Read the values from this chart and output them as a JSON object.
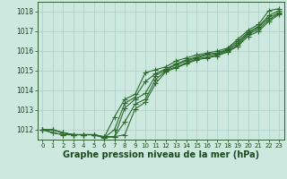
{
  "title": "Graphe pression niveau de la mer (hPa)",
  "hours": [
    0,
    1,
    2,
    3,
    4,
    5,
    6,
    7,
    8,
    9,
    10,
    11,
    12,
    13,
    14,
    15,
    16,
    17,
    18,
    19,
    20,
    21,
    22,
    23
  ],
  "ylim": [
    1011.5,
    1018.5
  ],
  "yticks": [
    1012,
    1013,
    1014,
    1015,
    1016,
    1017,
    1018
  ],
  "lines": [
    [
      1012.0,
      1012.0,
      1011.85,
      1011.75,
      1011.75,
      1011.75,
      1011.6,
      1012.65,
      1013.55,
      1013.8,
      1014.9,
      1015.05,
      1015.2,
      1015.5,
      1015.65,
      1015.8,
      1015.9,
      1016.0,
      1016.15,
      1016.6,
      1017.05,
      1017.35,
      1018.05,
      1018.15
    ],
    [
      1012.0,
      1012.0,
      1011.85,
      1011.75,
      1011.75,
      1011.75,
      1011.6,
      1012.0,
      1013.35,
      1013.65,
      1014.45,
      1014.85,
      1015.1,
      1015.35,
      1015.55,
      1015.7,
      1015.85,
      1015.9,
      1016.1,
      1016.5,
      1016.95,
      1017.25,
      1017.8,
      1018.05
    ],
    [
      1012.0,
      1012.0,
      1011.85,
      1011.75,
      1011.75,
      1011.75,
      1011.6,
      1011.65,
      1013.1,
      1013.55,
      1013.85,
      1014.75,
      1015.05,
      1015.3,
      1015.5,
      1015.65,
      1015.8,
      1015.85,
      1016.05,
      1016.4,
      1016.9,
      1017.2,
      1017.7,
      1017.95
    ],
    [
      1012.0,
      1011.85,
      1011.75,
      1011.75,
      1011.75,
      1011.75,
      1011.65,
      1011.65,
      1012.4,
      1013.3,
      1013.55,
      1014.55,
      1015.0,
      1015.2,
      1015.4,
      1015.6,
      1015.7,
      1015.8,
      1016.0,
      1016.3,
      1016.85,
      1017.1,
      1017.6,
      1017.9
    ],
    [
      1012.0,
      1011.85,
      1011.75,
      1011.75,
      1011.75,
      1011.75,
      1011.65,
      1011.65,
      1011.75,
      1013.05,
      1013.4,
      1014.35,
      1014.95,
      1015.15,
      1015.35,
      1015.55,
      1015.65,
      1015.75,
      1015.95,
      1016.25,
      1016.75,
      1017.0,
      1017.5,
      1017.85
    ]
  ],
  "line_color": "#2d6a2d",
  "bg_color": "#cce8df",
  "grid_color": "#aacfc5",
  "text_color": "#1a4a1a",
  "marker": "+",
  "marker_size": 4.0,
  "linewidth": 0.8,
  "title_fontsize": 7,
  "tick_fontsize": 5.5,
  "xlabel_fontsize": 5.0
}
